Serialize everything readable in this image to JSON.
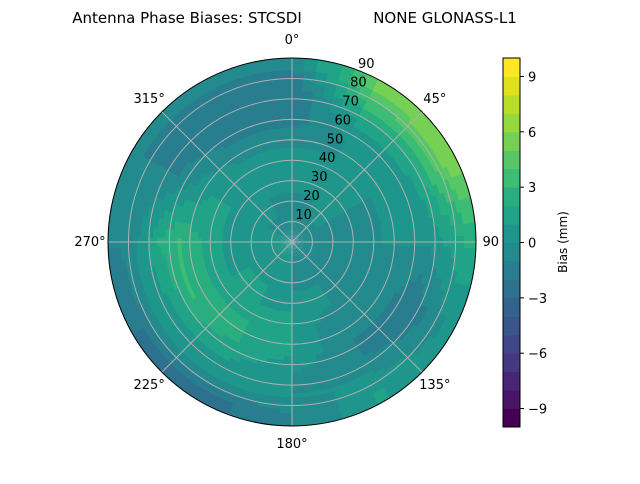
{
  "chart_data": {
    "type": "heatmap",
    "subtype": "polar-filled-contour",
    "title_left": "Antenna Phase Biases: STCSDI",
    "title_right": "NONE GLONASS-L1",
    "angular_tick_labels": [
      "0°",
      "45°",
      "90°",
      "135°",
      "180°",
      "225°",
      "270°",
      "315°"
    ],
    "angular_ticks_deg": [
      0,
      45,
      90,
      135,
      180,
      225,
      270,
      315
    ],
    "angular_direction": "clockwise",
    "angular_zero": "north",
    "radial_tick_labels": [
      "10",
      "20",
      "30",
      "40",
      "50",
      "60",
      "70",
      "80",
      "90"
    ],
    "radial_ticks": [
      10,
      20,
      30,
      40,
      50,
      60,
      70,
      80,
      90
    ],
    "radial_range": [
      0,
      90
    ],
    "grid": true,
    "colorbar": {
      "label": "Bias (mm)",
      "range": [
        -10,
        10
      ],
      "level_step": 1,
      "tick_values": [
        -9,
        -6,
        -3,
        0,
        3,
        6,
        9
      ],
      "tick_labels": [
        "−9",
        "−6",
        "−3",
        "0",
        "3",
        "6",
        "9"
      ],
      "colormap": "viridis",
      "placement": "right"
    },
    "azimuth_deg": [
      0,
      30,
      60,
      90,
      120,
      150,
      180,
      210,
      240,
      270,
      300,
      330
    ],
    "zenith_deg": [
      5,
      15,
      25,
      35,
      45,
      55,
      65,
      75,
      85
    ],
    "bias_mm": [
      [
        -1,
        -1,
        0,
        0,
        0,
        -1,
        -2,
        -2,
        -1
      ],
      [
        -1,
        0,
        0,
        0,
        0,
        0,
        1,
        3,
        5
      ],
      [
        -1,
        0,
        0,
        0,
        0,
        0,
        1,
        3.5,
        6
      ],
      [
        -1,
        -1,
        -1,
        -1,
        0,
        0,
        0,
        1,
        2
      ],
      [
        -1,
        -1,
        -1,
        -1,
        -1,
        -1,
        -2,
        -1,
        0
      ],
      [
        -1,
        -1,
        0,
        0,
        -1,
        -1,
        -1,
        0,
        1
      ],
      [
        0,
        0,
        0,
        1,
        1,
        1,
        0,
        0,
        -1
      ],
      [
        0,
        0,
        1,
        1,
        2,
        2,
        1,
        0,
        -2.5
      ],
      [
        0,
        0,
        1,
        1,
        2,
        3,
        1,
        0,
        -2
      ],
      [
        0,
        0,
        0,
        1,
        2,
        3,
        2,
        0,
        -1
      ],
      [
        0,
        0,
        0,
        1,
        1,
        0,
        -1,
        -1,
        -1
      ],
      [
        -1,
        0,
        0,
        0,
        0,
        -1,
        -2,
        -2,
        -1
      ]
    ]
  }
}
